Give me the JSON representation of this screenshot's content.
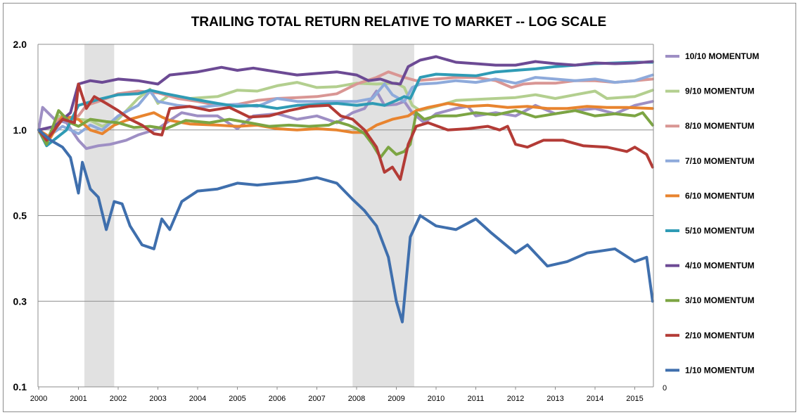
{
  "chart_data": {
    "type": "line",
    "title": "TRAILING TOTAL RETURN RELATIVE TO MARKET -- LOG SCALE",
    "xlabel": "",
    "ylabel": "",
    "y_ticks": [
      2.0,
      1.0,
      0.5,
      0.3,
      0.1
    ],
    "y_tick_labels": [
      "2.0",
      "1.0",
      "0.5",
      "0.3",
      "0.1"
    ],
    "secondary_axis_label": "0",
    "x_ticks": [
      "2000",
      "2001",
      "2002",
      "2003",
      "2004",
      "2005",
      "2006",
      "2007",
      "2008",
      "2009",
      "2010",
      "2011",
      "2012",
      "2013",
      "2014",
      "2015"
    ],
    "xlim": [
      2000,
      2015.46
    ],
    "grid": "horizontal",
    "legend_position": "right",
    "shaded_periods": [
      [
        2001.15,
        2001.9
      ],
      [
        2007.9,
        2009.45
      ]
    ],
    "series": [
      {
        "name": "10/10 MOMENTUM",
        "color": "#9e8fc4",
        "x": [
          2000,
          2000.1,
          2000.4,
          2000.7,
          2001,
          2001.2,
          2001.5,
          2001.8,
          2002.2,
          2002.5,
          2003,
          2003.3,
          2003.6,
          2004,
          2004.5,
          2005,
          2005.4,
          2006,
          2006.5,
          2007,
          2007.5,
          2007.9,
          2008.2,
          2008.5,
          2008.7,
          2009,
          2009.2,
          2009.4,
          2009.7,
          2010,
          2010.5,
          2010.8,
          2011,
          2011.5,
          2012,
          2012.5,
          2013,
          2013.5,
          2014,
          2014.5,
          2015,
          2015.45
        ],
        "y": [
          1.0,
          1.2,
          1.09,
          1.06,
          0.92,
          0.86,
          0.88,
          0.89,
          0.92,
          0.96,
          1.01,
          1.08,
          1.15,
          1.12,
          1.12,
          1.01,
          1.12,
          1.14,
          1.09,
          1.12,
          1.06,
          1.15,
          1.19,
          1.37,
          1.22,
          1.23,
          1.26,
          1.15,
          1.06,
          1.14,
          1.19,
          1.21,
          1.12,
          1.15,
          1.12,
          1.22,
          1.14,
          1.17,
          1.19,
          1.14,
          1.22,
          1.26
        ]
      },
      {
        "name": "9/10 MOMENTUM",
        "color": "#b3cf8f",
        "x": [
          2000,
          2000.2,
          2000.5,
          2000.8,
          2001,
          2001.3,
          2001.6,
          2002,
          2002.5,
          2002.8,
          2003,
          2003.3,
          2003.8,
          2004.5,
          2005,
          2005.5,
          2006,
          2006.5,
          2007,
          2007.5,
          2008,
          2008.5,
          2009,
          2009.2,
          2009.4,
          2009.6,
          2010,
          2010.5,
          2011,
          2011.5,
          2012,
          2012.5,
          2013,
          2013.5,
          2014,
          2014.3,
          2015,
          2015.45
        ],
        "y": [
          1.0,
          0.92,
          1.12,
          1.09,
          1.09,
          1.08,
          1.03,
          1.09,
          1.29,
          1.39,
          1.24,
          1.33,
          1.29,
          1.31,
          1.38,
          1.37,
          1.43,
          1.47,
          1.41,
          1.42,
          1.46,
          1.45,
          1.46,
          1.41,
          1.22,
          1.17,
          1.21,
          1.27,
          1.28,
          1.29,
          1.3,
          1.33,
          1.29,
          1.33,
          1.37,
          1.29,
          1.31,
          1.38
        ]
      },
      {
        "name": "8/10 MOMENTUM",
        "color": "#d99694",
        "x": [
          2000,
          2000.2,
          2000.5,
          2001,
          2001.2,
          2001.5,
          2002,
          2002.5,
          2003,
          2003.5,
          2004,
          2004.5,
          2005,
          2005.5,
          2006,
          2006.5,
          2007,
          2007.5,
          2008,
          2008.5,
          2008.8,
          2009.2,
          2009.5,
          2010,
          2010.5,
          2011,
          2011.5,
          2011.9,
          2012.2,
          2012.5,
          2013,
          2013.5,
          2014,
          2014.5,
          2015,
          2015.45
        ],
        "y": [
          1.0,
          0.92,
          1.09,
          1.12,
          1.22,
          1.26,
          1.34,
          1.37,
          1.35,
          1.29,
          1.26,
          1.22,
          1.23,
          1.27,
          1.29,
          1.3,
          1.31,
          1.34,
          1.45,
          1.53,
          1.6,
          1.53,
          1.49,
          1.51,
          1.53,
          1.53,
          1.49,
          1.41,
          1.45,
          1.46,
          1.46,
          1.49,
          1.49,
          1.47,
          1.49,
          1.51
        ]
      },
      {
        "name": "7/10 MOMENTUM",
        "color": "#8eaadb",
        "x": [
          2000,
          2000.2,
          2000.6,
          2001,
          2001.3,
          2001.6,
          2002,
          2002.5,
          2002.8,
          2003,
          2003.5,
          2004,
          2004.5,
          2005,
          2005.5,
          2006,
          2006.5,
          2007,
          2007.5,
          2008,
          2008.4,
          2008.7,
          2008.9,
          2009.2,
          2009.4,
          2009.6,
          2010,
          2010.5,
          2011,
          2011.5,
          2012,
          2012.5,
          2013,
          2013.5,
          2014,
          2014.5,
          2015,
          2015.45
        ],
        "y": [
          1.0,
          0.94,
          1.03,
          0.97,
          1.04,
          1.0,
          1.12,
          1.22,
          1.37,
          1.26,
          1.22,
          1.2,
          1.22,
          1.23,
          1.21,
          1.29,
          1.26,
          1.26,
          1.26,
          1.26,
          1.29,
          1.45,
          1.33,
          1.26,
          1.41,
          1.45,
          1.46,
          1.49,
          1.47,
          1.51,
          1.46,
          1.53,
          1.51,
          1.49,
          1.51,
          1.47,
          1.49,
          1.56
        ]
      },
      {
        "name": "6/10 MOMENTUM",
        "color": "#e8842f",
        "x": [
          2000,
          2000.3,
          2000.6,
          2001,
          2001.3,
          2001.6,
          2001.9,
          2002.2,
          2002.6,
          2002.9,
          2003.1,
          2003.3,
          2003.8,
          2004.5,
          2005,
          2005.5,
          2006,
          2006.5,
          2007,
          2007.5,
          2007.9,
          2008.2,
          2008.5,
          2008.9,
          2009.3,
          2009.5,
          2009.8,
          2010.3,
          2010.8,
          2011.3,
          2011.8,
          2012.3,
          2012.8,
          2013.3,
          2013.8,
          2014.3,
          2014.8,
          2015.45
        ],
        "y": [
          1.0,
          0.94,
          1.12,
          1.09,
          1.0,
          0.97,
          1.04,
          1.08,
          1.12,
          1.15,
          1.11,
          1.08,
          1.05,
          1.04,
          1.03,
          1.04,
          1.01,
          1.0,
          1.01,
          1.0,
          0.98,
          0.98,
          1.04,
          1.09,
          1.12,
          1.17,
          1.2,
          1.24,
          1.21,
          1.22,
          1.2,
          1.21,
          1.19,
          1.19,
          1.21,
          1.2,
          1.2,
          1.19
        ]
      },
      {
        "name": "5/10 MOMENTUM",
        "color": "#2f9bb5",
        "x": [
          2000,
          2000.2,
          2000.7,
          2001,
          2001.5,
          2002,
          2002.5,
          2002.8,
          2003.2,
          2003.8,
          2004.5,
          2005,
          2005.5,
          2006,
          2006.5,
          2007,
          2007.5,
          2008,
          2008.4,
          2008.7,
          2009,
          2009.2,
          2009.35,
          2009.6,
          2010,
          2010.5,
          2011,
          2011.5,
          2012,
          2012.5,
          2013,
          2013.5,
          2014,
          2015,
          2015.45
        ],
        "y": [
          1.0,
          0.88,
          1.0,
          1.22,
          1.28,
          1.33,
          1.34,
          1.38,
          1.34,
          1.29,
          1.24,
          1.21,
          1.22,
          1.19,
          1.22,
          1.23,
          1.24,
          1.22,
          1.24,
          1.22,
          1.27,
          1.31,
          1.29,
          1.53,
          1.57,
          1.56,
          1.55,
          1.6,
          1.62,
          1.64,
          1.67,
          1.69,
          1.71,
          1.73,
          1.73
        ]
      },
      {
        "name": "4/10 MOMENTUM",
        "color": "#6c4a94",
        "x": [
          2000,
          2000.4,
          2000.8,
          2001,
          2001.3,
          2001.6,
          2002,
          2002.5,
          2003,
          2003.3,
          2004,
          2004.6,
          2005,
          2005.4,
          2006,
          2006.5,
          2007,
          2007.5,
          2008,
          2008.3,
          2008.6,
          2008.9,
          2009.1,
          2009.3,
          2009.6,
          2010,
          2010.5,
          2011,
          2011.5,
          2012,
          2012.5,
          2013,
          2013.5,
          2014,
          2014.5,
          2015,
          2015.45
        ],
        "y": [
          1.0,
          1.03,
          1.15,
          1.45,
          1.49,
          1.47,
          1.51,
          1.49,
          1.45,
          1.56,
          1.6,
          1.66,
          1.62,
          1.65,
          1.6,
          1.56,
          1.58,
          1.6,
          1.56,
          1.49,
          1.51,
          1.46,
          1.45,
          1.67,
          1.76,
          1.81,
          1.73,
          1.71,
          1.69,
          1.69,
          1.74,
          1.71,
          1.69,
          1.72,
          1.71,
          1.72,
          1.74
        ]
      },
      {
        "name": "3/10 MOMENTUM",
        "color": "#7ca543",
        "x": [
          2000,
          2000.2,
          2000.5,
          2000.8,
          2001,
          2001.3,
          2001.7,
          2002,
          2002.4,
          2002.8,
          2003.2,
          2003.7,
          2004.3,
          2004.8,
          2005.3,
          2005.8,
          2006.3,
          2006.8,
          2007.3,
          2007.5,
          2007.8,
          2008,
          2008.2,
          2008.4,
          2008.6,
          2008.8,
          2009,
          2009.2,
          2009.35,
          2009.5,
          2009.7,
          2010,
          2010.5,
          2011,
          2011.5,
          2012,
          2012.5,
          2013,
          2013.5,
          2014,
          2014.5,
          2015,
          2015.2,
          2015.45
        ],
        "y": [
          1.0,
          0.89,
          1.17,
          1.06,
          1.03,
          1.09,
          1.07,
          1.06,
          1.02,
          1.03,
          1.01,
          1.08,
          1.06,
          1.09,
          1.06,
          1.03,
          1.04,
          1.03,
          1.04,
          1.07,
          1.04,
          1.01,
          0.97,
          0.89,
          0.8,
          0.87,
          0.82,
          0.84,
          0.89,
          1.15,
          1.09,
          1.12,
          1.12,
          1.15,
          1.13,
          1.17,
          1.11,
          1.14,
          1.17,
          1.12,
          1.14,
          1.12,
          1.15,
          1.04
        ]
      },
      {
        "name": "2/10 MOMENTUM",
        "color": "#b33b36",
        "x": [
          2000,
          2000.2,
          2000.6,
          2000.9,
          2001,
          2001.2,
          2001.4,
          2001.7,
          2002,
          2002.3,
          2002.6,
          2002.9,
          2003.1,
          2003.3,
          2003.8,
          2004.3,
          2004.8,
          2005.3,
          2005.8,
          2006.3,
          2006.8,
          2007.3,
          2007.6,
          2007.9,
          2008.2,
          2008.5,
          2008.7,
          2008.9,
          2009.1,
          2009.3,
          2009.5,
          2009.8,
          2010.3,
          2010.8,
          2011.3,
          2011.6,
          2011.8,
          2012,
          2012.3,
          2012.7,
          2013.2,
          2013.7,
          2014.3,
          2014.8,
          2015,
          2015.3,
          2015.45
        ],
        "y": [
          1.0,
          0.92,
          1.09,
          1.06,
          1.45,
          1.19,
          1.31,
          1.24,
          1.17,
          1.09,
          1.04,
          0.97,
          0.96,
          1.19,
          1.21,
          1.17,
          1.2,
          1.11,
          1.12,
          1.17,
          1.21,
          1.22,
          1.12,
          1.09,
          1.0,
          0.87,
          0.71,
          0.74,
          0.67,
          0.89,
          1.03,
          1.06,
          1.0,
          1.01,
          1.03,
          1.0,
          1.03,
          0.89,
          0.87,
          0.92,
          0.92,
          0.88,
          0.87,
          0.84,
          0.87,
          0.82,
          0.74
        ]
      },
      {
        "name": "1/10 MOMENTUM",
        "color": "#3f6fad",
        "x": [
          2000,
          2000.3,
          2000.6,
          2000.8,
          2001,
          2001.1,
          2001.3,
          2001.5,
          2001.7,
          2001.9,
          2002.1,
          2002.3,
          2002.6,
          2002.9,
          2003.1,
          2003.3,
          2003.6,
          2004,
          2004.5,
          2005,
          2005.5,
          2006,
          2006.5,
          2007,
          2007.5,
          2007.9,
          2008.2,
          2008.5,
          2008.8,
          2009,
          2009.15,
          2009.35,
          2009.6,
          2010,
          2010.5,
          2011,
          2011.4,
          2012,
          2012.3,
          2012.8,
          2013.3,
          2013.8,
          2014.5,
          2015,
          2015.3,
          2015.45
        ],
        "y": [
          1.0,
          0.92,
          0.87,
          0.8,
          0.6,
          0.77,
          0.62,
          0.58,
          0.46,
          0.56,
          0.55,
          0.47,
          0.42,
          0.41,
          0.49,
          0.46,
          0.56,
          0.61,
          0.62,
          0.65,
          0.64,
          0.65,
          0.66,
          0.68,
          0.65,
          0.57,
          0.52,
          0.47,
          0.39,
          0.3,
          0.23,
          0.44,
          0.5,
          0.47,
          0.46,
          0.49,
          0.45,
          0.4,
          0.42,
          0.37,
          0.38,
          0.4,
          0.41,
          0.38,
          0.39,
          0.3
        ]
      }
    ]
  }
}
